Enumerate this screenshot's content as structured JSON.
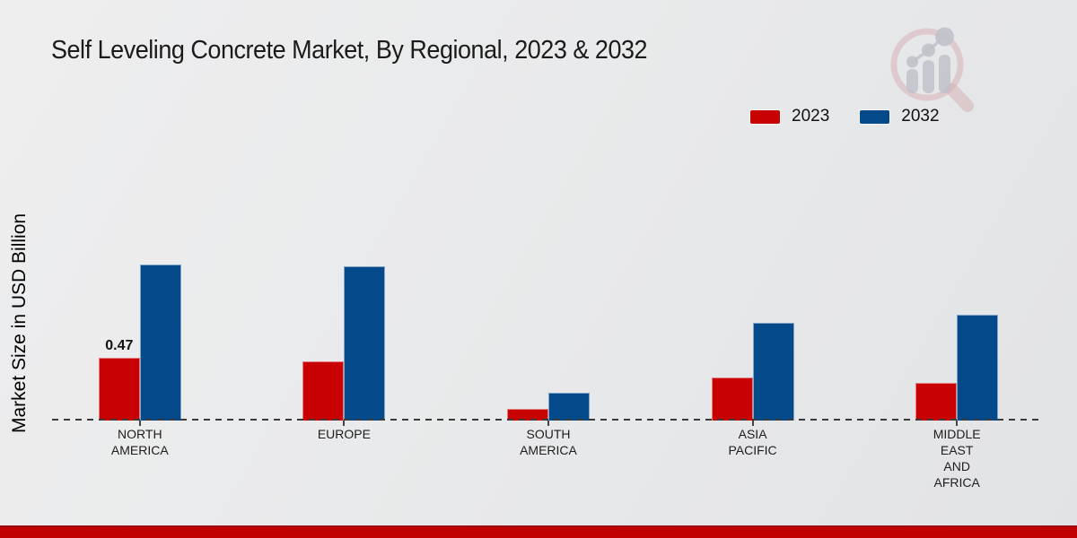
{
  "title": "Self Leveling Concrete Market, By Regional, 2023 & 2032",
  "watermark_icon": "magnifier-bar-chart-logo",
  "colors": {
    "series_2023": "#c80102",
    "series_2032": "#04498a",
    "background": "#e8e9ea",
    "bottom_band": "#c00001",
    "baseline_dash": "#3b3b3b",
    "text": "#1b1b1b"
  },
  "chart_data": {
    "type": "bar",
    "title": "Self Leveling Concrete Market, By Regional, 2023 & 2032",
    "xlabel": "",
    "ylabel": "Market Size in USD Billion",
    "categories": [
      "NORTH AMERICA",
      "EUROPE",
      "SOUTH AMERICA",
      "ASIA PACIFIC",
      "MIDDLE EAST AND AFRICA"
    ],
    "category_lines": [
      [
        "NORTH",
        "AMERICA"
      ],
      [
        "EUROPE"
      ],
      [
        "SOUTH",
        "AMERICA"
      ],
      [
        "ASIA",
        "PACIFIC"
      ],
      [
        "MIDDLE",
        "EAST",
        "AND",
        "AFRICA"
      ]
    ],
    "series": [
      {
        "name": "2023",
        "color": "#c80102",
        "values": [
          0.47,
          0.44,
          0.09,
          0.32,
          0.28
        ]
      },
      {
        "name": "2032",
        "color": "#04498a",
        "values": [
          1.16,
          1.15,
          0.21,
          0.73,
          0.79
        ]
      }
    ],
    "bar_value_labels": [
      {
        "series": "2023",
        "category": "NORTH AMERICA",
        "text": "0.47"
      }
    ],
    "ylim": [
      0,
      1.25
    ],
    "grid": false,
    "y_axis_ticks_visible": false,
    "legend_position": "top-right",
    "baseline_style": "dashed"
  }
}
